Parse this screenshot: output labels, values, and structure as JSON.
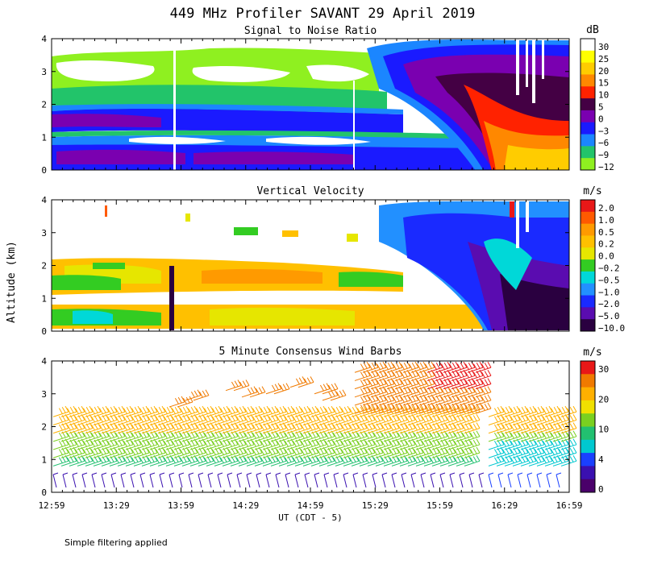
{
  "figure": {
    "title": "449 MHz Profiler SAVANT 29 April 2019",
    "footer": "Simple filtering applied",
    "ylabel": "Altitude (km)",
    "xlabel": "UT  (CDT - 5)"
  },
  "chart_data": [
    {
      "type": "heatmap",
      "title": "Signal to Noise Ratio",
      "ylabel": "Altitude (km)",
      "ylim": [
        0,
        4
      ],
      "yticks": [
        "0",
        "1",
        "2",
        "3",
        "4"
      ],
      "colorbar": {
        "unit": "dB",
        "labels": [
          "30",
          "25",
          "20",
          "15",
          "10",
          "5",
          "0",
          "−3",
          "−6",
          "−9",
          "−12"
        ],
        "colors": [
          "#ffffff",
          "#ffff00",
          "#ffcc00",
          "#ff8800",
          "#ff2200",
          "#440044",
          "#7a00b0",
          "#1a1aff",
          "#1b86ff",
          "#22c46a",
          "#8ff020"
        ]
      }
    },
    {
      "type": "heatmap",
      "title": "Vertical Velocity",
      "ylabel": "Altitude (km)",
      "ylim": [
        0,
        4
      ],
      "yticks": [
        "0",
        "1",
        "2",
        "3",
        "4"
      ],
      "colorbar": {
        "unit": "m/s",
        "labels": [
          "2.0",
          "1.0",
          "0.5",
          "0.2",
          "0.0",
          "−0.2",
          "−0.5",
          "−1.0",
          "−2.0",
          "−5.0",
          "−10.0"
        ],
        "colors": [
          "#e81818",
          "#ff5a00",
          "#ff9a00",
          "#ffc000",
          "#e6e600",
          "#33cc22",
          "#00d8d8",
          "#2290ff",
          "#1a2aff",
          "#5a0cb0",
          "#2a0040"
        ]
      }
    },
    {
      "type": "scatter",
      "title": "5 Minute Consensus Wind Barbs",
      "ylabel": "Altitude (km)",
      "ylim": [
        0,
        4
      ],
      "yticks": [
        "0",
        "1",
        "2",
        "3",
        "4"
      ],
      "xlabel": "UT  (CDT - 5)",
      "x": [
        "12:59",
        "13:29",
        "13:59",
        "14:29",
        "14:59",
        "15:29",
        "15:59",
        "16:29",
        "16:59"
      ],
      "colorbar": {
        "unit": "m/s",
        "labels": [
          "30",
          "20",
          "10",
          "4",
          "0"
        ],
        "colors": [
          "#e81818",
          "#f07a00",
          "#ffb000",
          "#f0e000",
          "#7ad020",
          "#22c070",
          "#00c8d0",
          "#1a40ff",
          "#3a10b0",
          "#4a006a"
        ]
      }
    }
  ]
}
